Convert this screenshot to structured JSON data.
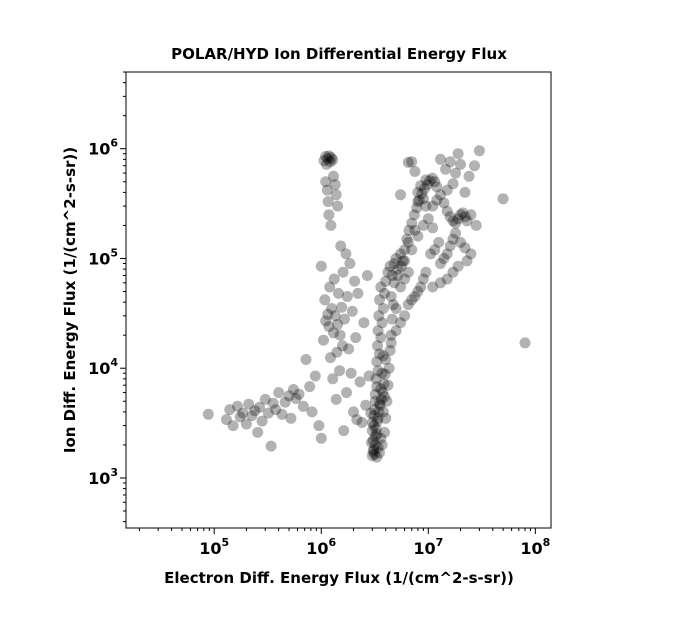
{
  "chart_data": {
    "type": "scatter",
    "title": "POLAR/HYD  Ion Differential Energy Flux",
    "xlabel": "Electron Diff. Energy Flux (1/(cm^2-s-sr))",
    "ylabel": "Ion Diff. Energy Flux (1/(cm^2-s-sr))",
    "x_scale": "log",
    "y_scale": "log",
    "xlim": [
      15000,
      140000000
    ],
    "ylim": [
      350,
      5000000
    ],
    "x_ticks": [
      {
        "value": 100000,
        "base": "10",
        "exp": "5"
      },
      {
        "value": 1000000,
        "base": "10",
        "exp": "6"
      },
      {
        "value": 10000000,
        "base": "10",
        "exp": "7"
      },
      {
        "value": 100000000,
        "base": "10",
        "exp": "8"
      }
    ],
    "y_ticks": [
      {
        "value": 1000,
        "base": "10",
        "exp": "3"
      },
      {
        "value": 10000,
        "base": "10",
        "exp": "4"
      },
      {
        "value": 100000,
        "base": "10",
        "exp": "5"
      },
      {
        "value": 1000000,
        "base": "10",
        "exp": "6"
      }
    ],
    "grid": false,
    "marker_color": "#000000",
    "marker_opacity": 0.3,
    "series": [
      {
        "points": [
          [
            88000,
            3800
          ],
          [
            130000,
            3400
          ],
          [
            140000,
            4200
          ],
          [
            150000,
            3000
          ],
          [
            165000,
            4500
          ],
          [
            175000,
            3600
          ],
          [
            185000,
            3900
          ],
          [
            200000,
            3100
          ],
          [
            210000,
            4700
          ],
          [
            225000,
            3700
          ],
          [
            240000,
            4100
          ],
          [
            255000,
            2600
          ],
          [
            265000,
            4400
          ],
          [
            280000,
            3300
          ],
          [
            300000,
            5200
          ],
          [
            320000,
            3900
          ],
          [
            340000,
            1950
          ],
          [
            355000,
            4800
          ],
          [
            375000,
            4200
          ],
          [
            400000,
            6000
          ],
          [
            430000,
            3800
          ],
          [
            460000,
            4900
          ],
          [
            500000,
            5600
          ],
          [
            520000,
            3500
          ],
          [
            550000,
            6400
          ],
          [
            580000,
            5300
          ],
          [
            620000,
            5800
          ],
          [
            680000,
            4500
          ],
          [
            720000,
            12000
          ],
          [
            780000,
            6800
          ],
          [
            820000,
            4000
          ],
          [
            880000,
            8500
          ],
          [
            950000,
            3000
          ],
          [
            1000000,
            2300
          ],
          [
            1000000,
            85000
          ],
          [
            1050000,
            18000
          ],
          [
            1080000,
            42000
          ],
          [
            1100000,
            27000
          ],
          [
            1150000,
            31000
          ],
          [
            1180000,
            24000
          ],
          [
            1200000,
            55000
          ],
          [
            1220000,
            12500
          ],
          [
            1250000,
            35000
          ],
          [
            1280000,
            8000
          ],
          [
            1300000,
            21000
          ],
          [
            1320000,
            65000
          ],
          [
            1350000,
            30000
          ],
          [
            1380000,
            5200
          ],
          [
            1400000,
            14000
          ],
          [
            1420000,
            25000
          ],
          [
            1450000,
            48000
          ],
          [
            1480000,
            9500
          ],
          [
            1500000,
            20000
          ],
          [
            1520000,
            130000
          ],
          [
            1550000,
            36000
          ],
          [
            1580000,
            16000
          ],
          [
            1600000,
            75000
          ],
          [
            1620000,
            2700
          ],
          [
            1650000,
            28000
          ],
          [
            1700000,
            110000
          ],
          [
            1720000,
            6000
          ],
          [
            1750000,
            45000
          ],
          [
            1800000,
            15000
          ],
          [
            1850000,
            90000
          ],
          [
            1900000,
            9000
          ],
          [
            1950000,
            33000
          ],
          [
            2000000,
            4000
          ],
          [
            2050000,
            62000
          ],
          [
            2100000,
            19000
          ],
          [
            2150000,
            3400
          ],
          [
            2200000,
            48000
          ],
          [
            2300000,
            7500
          ],
          [
            2400000,
            3200
          ],
          [
            2500000,
            26000
          ],
          [
            2600000,
            4600
          ],
          [
            2700000,
            70000
          ],
          [
            2800000,
            8500
          ],
          [
            1060000,
            780000
          ],
          [
            1100000,
            850000
          ],
          [
            1120000,
            720000
          ],
          [
            1150000,
            810000
          ],
          [
            1180000,
            860000
          ],
          [
            1210000,
            760000
          ],
          [
            1240000,
            830000
          ],
          [
            1280000,
            790000
          ],
          [
            1100000,
            500000
          ],
          [
            1140000,
            420000
          ],
          [
            1160000,
            330000
          ],
          [
            1180000,
            250000
          ],
          [
            1230000,
            200000
          ],
          [
            1300000,
            560000
          ],
          [
            1350000,
            470000
          ],
          [
            1380000,
            380000
          ],
          [
            1420000,
            300000
          ],
          [
            3000000,
            1600
          ],
          [
            3050000,
            2200
          ],
          [
            3100000,
            3000
          ],
          [
            3150000,
            4200
          ],
          [
            3200000,
            5800
          ],
          [
            3250000,
            8000
          ],
          [
            3300000,
            11500
          ],
          [
            3350000,
            16000
          ],
          [
            3400000,
            22000
          ],
          [
            3450000,
            30000
          ],
          [
            3500000,
            42000
          ],
          [
            3600000,
            55000
          ],
          [
            3100000,
            1800
          ],
          [
            3200000,
            2000
          ],
          [
            3300000,
            2500
          ],
          [
            3400000,
            3500
          ],
          [
            3500000,
            4800
          ],
          [
            3600000,
            6500
          ],
          [
            3700000,
            9000
          ],
          [
            3800000,
            13000
          ],
          [
            3300000,
            1550
          ],
          [
            3500000,
            1700
          ],
          [
            3700000,
            2000
          ],
          [
            3900000,
            2600
          ],
          [
            4000000,
            3500
          ],
          [
            4100000,
            5000
          ],
          [
            4200000,
            7000
          ],
          [
            4300000,
            10000
          ],
          [
            4400000,
            14500
          ],
          [
            4500000,
            20000
          ],
          [
            4600000,
            28000
          ],
          [
            4700000,
            38000
          ],
          [
            3000000,
            2700
          ],
          [
            3100000,
            3700
          ],
          [
            3200000,
            5000
          ],
          [
            3300000,
            6800
          ],
          [
            3400000,
            9500
          ],
          [
            3500000,
            13500
          ],
          [
            3600000,
            19000
          ],
          [
            3700000,
            26000
          ],
          [
            3800000,
            35000
          ],
          [
            3900000,
            48000
          ],
          [
            4000000,
            62000
          ],
          [
            4200000,
            75000
          ],
          [
            4400000,
            85000
          ],
          [
            4600000,
            70000
          ],
          [
            4800000,
            90000
          ],
          [
            5000000,
            100000
          ],
          [
            5200000,
            80000
          ],
          [
            5500000,
            110000
          ],
          [
            5800000,
            95000
          ],
          [
            6000000,
            120000
          ],
          [
            6300000,
            150000
          ],
          [
            6600000,
            180000
          ],
          [
            7000000,
            210000
          ],
          [
            7400000,
            250000
          ],
          [
            7800000,
            290000
          ],
          [
            8200000,
            340000
          ],
          [
            8700000,
            390000
          ],
          [
            9200000,
            430000
          ],
          [
            9800000,
            470000
          ],
          [
            10300000,
            510000
          ],
          [
            10900000,
            540000
          ],
          [
            11500000,
            500000
          ],
          [
            8000000,
            400000
          ],
          [
            8500000,
            460000
          ],
          [
            9000000,
            350000
          ],
          [
            9500000,
            520000
          ],
          [
            12000000,
            450000
          ],
          [
            13000000,
            380000
          ],
          [
            14000000,
            320000
          ],
          [
            15000000,
            270000
          ],
          [
            16000000,
            240000
          ],
          [
            17000000,
            220000
          ],
          [
            18000000,
            210000
          ],
          [
            19000000,
            230000
          ],
          [
            20000000,
            250000
          ],
          [
            21000000,
            260000
          ],
          [
            22000000,
            240000
          ],
          [
            23000000,
            220000
          ],
          [
            6500000,
            140000
          ],
          [
            7000000,
            120000
          ],
          [
            7500000,
            180000
          ],
          [
            8000000,
            160000
          ],
          [
            9000000,
            200000
          ],
          [
            10000000,
            230000
          ],
          [
            11000000,
            190000
          ],
          [
            4800000,
            60000
          ],
          [
            5200000,
            70000
          ],
          [
            5600000,
            85000
          ],
          [
            6000000,
            95000
          ],
          [
            4500000,
            45000
          ],
          [
            5000000,
            35000
          ],
          [
            5500000,
            55000
          ],
          [
            6000000,
            65000
          ],
          [
            6500000,
            75000
          ],
          [
            13000000,
            90000
          ],
          [
            14000000,
            100000
          ],
          [
            15000000,
            110000
          ],
          [
            16000000,
            130000
          ],
          [
            17000000,
            150000
          ],
          [
            18000000,
            170000
          ],
          [
            12500000,
            140000
          ],
          [
            11500000,
            120000
          ],
          [
            10500000,
            110000
          ],
          [
            9500000,
            75000
          ],
          [
            9000000,
            65000
          ],
          [
            8500000,
            55000
          ],
          [
            8000000,
            50000
          ],
          [
            7500000,
            45000
          ],
          [
            7000000,
            42000
          ],
          [
            6500000,
            38000
          ],
          [
            6000000,
            30000
          ],
          [
            5500000,
            26000
          ],
          [
            5000000,
            22000
          ],
          [
            4500000,
            17000
          ],
          [
            4000000,
            12000
          ],
          [
            3800000,
            4000
          ],
          [
            3900000,
            5500
          ],
          [
            3600000,
            2300
          ],
          [
            3400000,
            1900
          ],
          [
            3200000,
            2400
          ],
          [
            3000000,
            3200
          ],
          [
            2900000,
            3900
          ],
          [
            2950000,
            2100
          ],
          [
            3050000,
            1750
          ],
          [
            3150000,
            1650
          ],
          [
            3250000,
            2800
          ],
          [
            3350000,
            3300
          ],
          [
            3450000,
            4000
          ],
          [
            3550000,
            4600
          ],
          [
            3650000,
            5200
          ],
          [
            3750000,
            6000
          ],
          [
            3850000,
            7200
          ],
          [
            3950000,
            8800
          ],
          [
            13000000,
            800000
          ],
          [
            14500000,
            650000
          ],
          [
            16000000,
            760000
          ],
          [
            18000000,
            600000
          ],
          [
            20000000,
            720000
          ],
          [
            22000000,
            400000
          ],
          [
            25000000,
            250000
          ],
          [
            28000000,
            200000
          ],
          [
            30000000,
            960000
          ],
          [
            27000000,
            700000
          ],
          [
            24000000,
            560000
          ],
          [
            19000000,
            900000
          ],
          [
            17000000,
            480000
          ],
          [
            15000000,
            420000
          ],
          [
            12000000,
            340000
          ],
          [
            11000000,
            300000
          ],
          [
            6500000,
            750000
          ],
          [
            7000000,
            760000
          ],
          [
            7500000,
            620000
          ],
          [
            5500000,
            380000
          ],
          [
            8000000,
            330000
          ],
          [
            9500000,
            300000
          ],
          [
            20000000,
            140000
          ],
          [
            22000000,
            125000
          ],
          [
            25000000,
            110000
          ],
          [
            23000000,
            95000
          ],
          [
            19000000,
            85000
          ],
          [
            17000000,
            75000
          ],
          [
            15000000,
            65000
          ],
          [
            13000000,
            60000
          ],
          [
            11000000,
            55000
          ],
          [
            50000000,
            350000
          ],
          [
            80000000,
            17000
          ]
        ]
      }
    ]
  }
}
